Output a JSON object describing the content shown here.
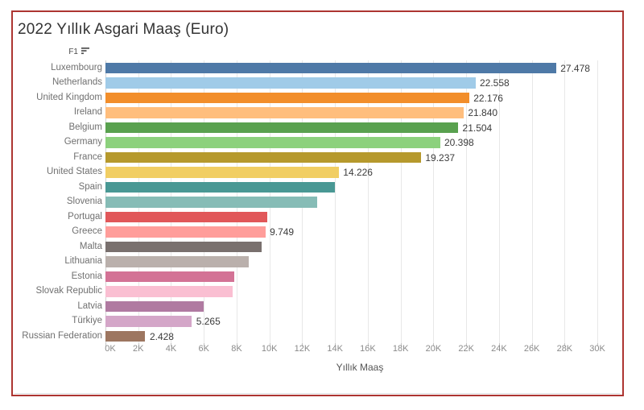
{
  "window": {
    "background_color": "#ffffff",
    "frame_border_color": "#ad3531"
  },
  "header": {
    "title": "2022 Yıllık Asgari Maaş (Euro)",
    "row_field_label": "F1",
    "sort_icon": "sort-descending-icon"
  },
  "chart_data": {
    "type": "bar",
    "orientation": "horizontal",
    "title": "2022 Yıllık Asgari Maaş (Euro)",
    "xlabel": "Yıllık Maaş",
    "ylabel_field": "F1",
    "xlim": [
      0,
      31000
    ],
    "x_tick_step": 2000,
    "x_tick_labels": [
      "0K",
      "2K",
      "4K",
      "6K",
      "8K",
      "10K",
      "12K",
      "14K",
      "16K",
      "18K",
      "20K",
      "22K",
      "24K",
      "26K",
      "28K",
      "30K"
    ],
    "grid": "vertical-light",
    "legend": "none",
    "sort": "descending",
    "categories": [
      "Luxembourg",
      "Netherlands",
      "United Kingdom",
      "Ireland",
      "Belgium",
      "Germany",
      "France",
      "United States",
      "Spain",
      "Slovenia",
      "Portugal",
      "Greece",
      "Malta",
      "Lithuania",
      "Estonia",
      "Slovak Republic",
      "Latvia",
      "Türkiye",
      "Russian Federation"
    ],
    "values": [
      27478,
      22558,
      22176,
      21840,
      21504,
      20398,
      19237,
      14226,
      14000,
      12893,
      9870,
      9749,
      9507,
      8760,
      7848,
      7752,
      6000,
      5265,
      2428
    ],
    "bar_labels": [
      "27.478",
      "22.558",
      "22.176",
      "21.840",
      "21.504",
      "20.398",
      "19.237",
      "14.226",
      null,
      null,
      null,
      "9.749",
      null,
      null,
      null,
      null,
      null,
      "5.265",
      "2.428"
    ],
    "colors": [
      "#4e79a7",
      "#a0cbe8",
      "#f28e2b",
      "#ffbe7d",
      "#59a14f",
      "#8cd17d",
      "#b6992d",
      "#f1ce63",
      "#499894",
      "#86bcb6",
      "#e15759",
      "#ff9d9a",
      "#79706e",
      "#bab0ac",
      "#d37295",
      "#fabfd2",
      "#b07aa1",
      "#d4a6c8",
      "#9d7660"
    ]
  }
}
